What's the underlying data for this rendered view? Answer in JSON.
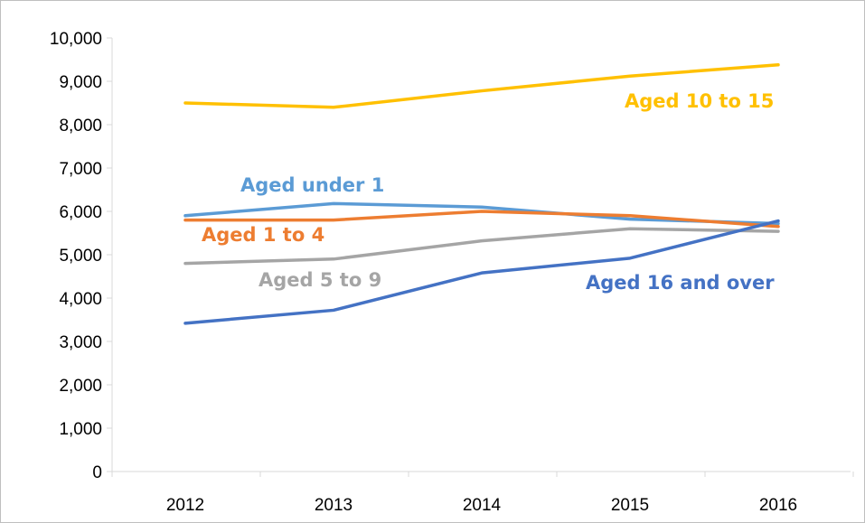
{
  "chart_data": {
    "type": "line",
    "title": "",
    "xlabel": "",
    "ylabel": "",
    "categories": [
      "2012",
      "2013",
      "2014",
      "2015",
      "2016"
    ],
    "ylim": [
      0,
      10000
    ],
    "yticks": [
      0,
      1000,
      2000,
      3000,
      4000,
      5000,
      6000,
      7000,
      8000,
      9000,
      10000
    ],
    "ytick_labels": [
      "0",
      "1,000",
      "2,000",
      "3,000",
      "4,000",
      "5,000",
      "6,000",
      "7,000",
      "8,000",
      "9,000",
      "10,000"
    ],
    "grid": false,
    "legend": "none (series labelled directly on the plot)",
    "series": [
      {
        "name": "Aged 10 to 15",
        "color": "#FFC000",
        "values": [
          8500,
          8400,
          8780,
          9120,
          9380
        ]
      },
      {
        "name": "Aged under 1",
        "color": "#5B9BD5",
        "values": [
          5900,
          6180,
          6100,
          5820,
          5720
        ]
      },
      {
        "name": "Aged 1 to 4",
        "color": "#ED7D31",
        "values": [
          5800,
          5800,
          6000,
          5900,
          5650
        ]
      },
      {
        "name": "Aged 5 to 9",
        "color": "#A5A5A5",
        "values": [
          4800,
          4900,
          5320,
          5600,
          5540
        ]
      },
      {
        "name": "Aged 16 and over",
        "color": "#4472C4",
        "values": [
          3420,
          3720,
          4580,
          4920,
          5780
        ]
      }
    ]
  }
}
